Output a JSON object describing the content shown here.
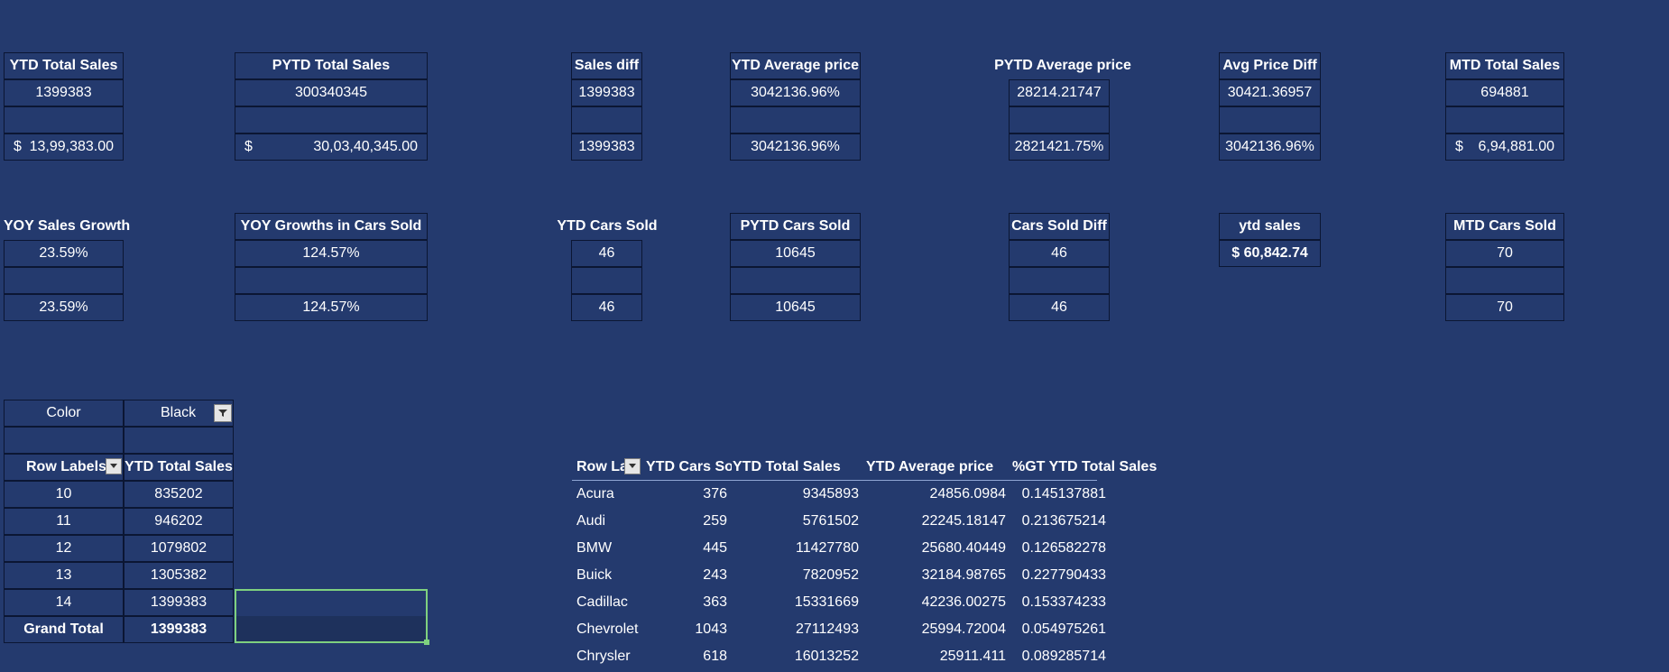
{
  "kpi_row1": [
    {
      "title": "YTD Total Sales",
      "value": "1399383",
      "formatted_symbol": "$",
      "formatted_value": "13,99,383.00"
    },
    {
      "title": "PYTD Total Sales",
      "value": "300340345",
      "formatted_symbol": "$",
      "formatted_value": "30,03,40,345.00"
    },
    {
      "title": "Sales diff",
      "value": "1399383",
      "formatted_value": "1399383"
    },
    {
      "title": "YTD Average price",
      "value": "3042136.96%",
      "formatted_value": "3042136.96%"
    },
    {
      "title": "PYTD Average price",
      "value": "28214.21747",
      "formatted_value": "2821421.75%"
    },
    {
      "title": "Avg Price Diff",
      "value": "30421.36957",
      "formatted_value": "3042136.96%"
    },
    {
      "title": "MTD Total Sales",
      "value": "694881",
      "formatted_symbol": "$",
      "formatted_value": "6,94,881.00"
    }
  ],
  "kpi_row2": [
    {
      "title": "YOY Sales Growth",
      "value": "23.59%",
      "formatted_value": "23.59%"
    },
    {
      "title": "YOY Growths in Cars Sold",
      "value": "124.57%",
      "formatted_value": "124.57%"
    },
    {
      "title": "YTD Cars Sold",
      "value": "46",
      "formatted_value": "46"
    },
    {
      "title": "PYTD Cars Sold",
      "value": "10645",
      "formatted_value": "10645"
    },
    {
      "title": "Cars Sold Diff",
      "value": "46",
      "formatted_value": "46"
    },
    {
      "title": "ytd sales",
      "value": "$  60,842.74"
    },
    {
      "title": "MTD Cars Sold",
      "value": "70",
      "formatted_value": "70"
    }
  ],
  "pivot_left": {
    "filter_label": "Color",
    "filter_value": "Black",
    "col1": "Row Labels",
    "col2": "YTD Total Sales",
    "rows": [
      {
        "label": "10",
        "value": "835202"
      },
      {
        "label": "11",
        "value": "946202"
      },
      {
        "label": "12",
        "value": "1079802"
      },
      {
        "label": "13",
        "value": "1305382"
      },
      {
        "label": "14",
        "value": "1399383"
      }
    ],
    "total_label": "Grand Total",
    "total_value": "1399383"
  },
  "pivot_right": {
    "headers": [
      "Row La",
      "YTD Cars Sol",
      "YTD Total Sales",
      "YTD Average price",
      "%GT YTD Total Sales"
    ],
    "rows": [
      [
        "Acura",
        "376",
        "9345893",
        "24856.0984",
        "0.145137881"
      ],
      [
        "Audi",
        "259",
        "5761502",
        "22245.18147",
        "0.213675214"
      ],
      [
        "BMW",
        "445",
        "11427780",
        "25680.40449",
        "0.126582278"
      ],
      [
        "Buick",
        "243",
        "7820952",
        "32184.98765",
        "0.227790433"
      ],
      [
        "Cadillac",
        "363",
        "15331669",
        "42236.00275",
        "0.153374233"
      ],
      [
        "Chevrolet",
        "1043",
        "27112493",
        "25994.72004",
        "0.054975261"
      ],
      [
        "Chrysler",
        "618",
        "16013252",
        "25911.411",
        "0.089285714"
      ]
    ]
  },
  "icons": {
    "filter": "filter-dropdown-icon",
    "dropdown": "chevron-down-icon"
  }
}
